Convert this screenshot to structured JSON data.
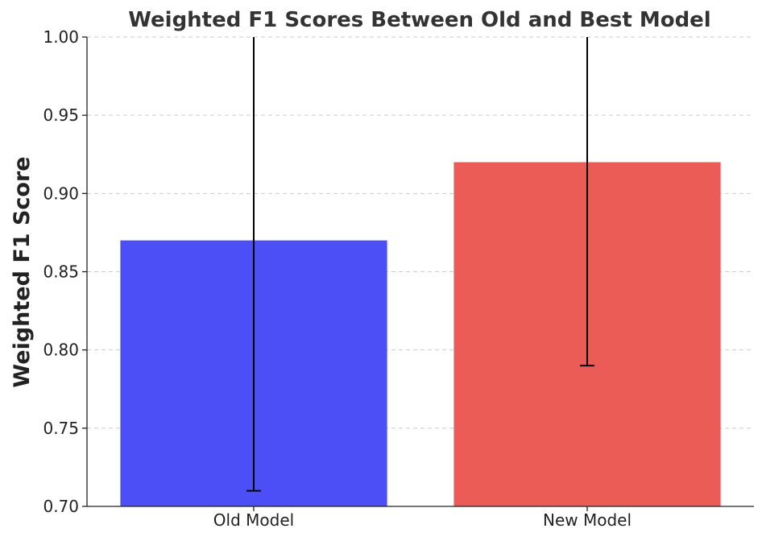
{
  "chart_data": {
    "type": "bar",
    "title": "Weighted F1 Scores Between Old and Best Model",
    "xlabel": "",
    "ylabel": "Weighted F1 Score",
    "ylim": [
      0.7,
      1.0
    ],
    "yticks": [
      "0.70",
      "0.75",
      "0.80",
      "0.85",
      "0.90",
      "0.95",
      "1.00"
    ],
    "grid": true,
    "categories": [
      "Old Model",
      "New Model"
    ],
    "values": [
      0.87,
      0.92
    ],
    "error_bars": [
      {
        "lower": 0.71,
        "upper": 1.03
      },
      {
        "lower": 0.79,
        "upper": 1.05
      }
    ],
    "colors": [
      "#4c4ff5",
      "#ea5c55"
    ]
  }
}
